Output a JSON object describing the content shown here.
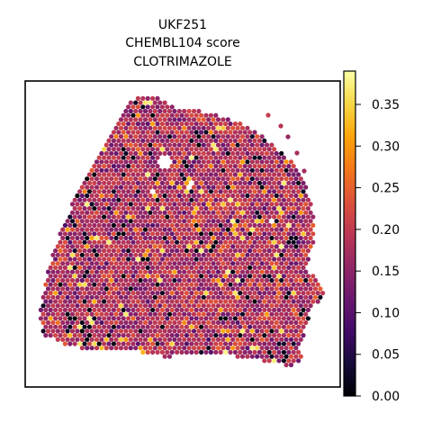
{
  "chart_data": {
    "type": "scatter",
    "title_lines": [
      "UKF251",
      "CHEMBL104 score",
      "CLOTRIMAZOLE"
    ],
    "xlabel": "",
    "ylabel": "",
    "axis_ticks_visible": false,
    "grid": false,
    "colormap": "inferno",
    "colorbar": {
      "range": [
        0.0,
        0.39
      ],
      "ticks": [
        0.0,
        0.05,
        0.1,
        0.15,
        0.2,
        0.25,
        0.3,
        0.35
      ],
      "tick_labels": [
        "0.00",
        "0.05",
        "0.10",
        "0.15",
        "0.20",
        "0.25",
        "0.30",
        "0.35"
      ],
      "placement": "right"
    },
    "description_of_marks": "Hexagonal grid of Visium spots forming a tissue section; each spot colored by score value between 0.00 and ~0.39, predominantly in 0.10-0.25 range with scattered dark (near 0) and bright (near 0.35) spots.",
    "spot_value_range": [
      0.0,
      0.39
    ],
    "spot_value_typical": [
      0.1,
      0.25
    ]
  }
}
